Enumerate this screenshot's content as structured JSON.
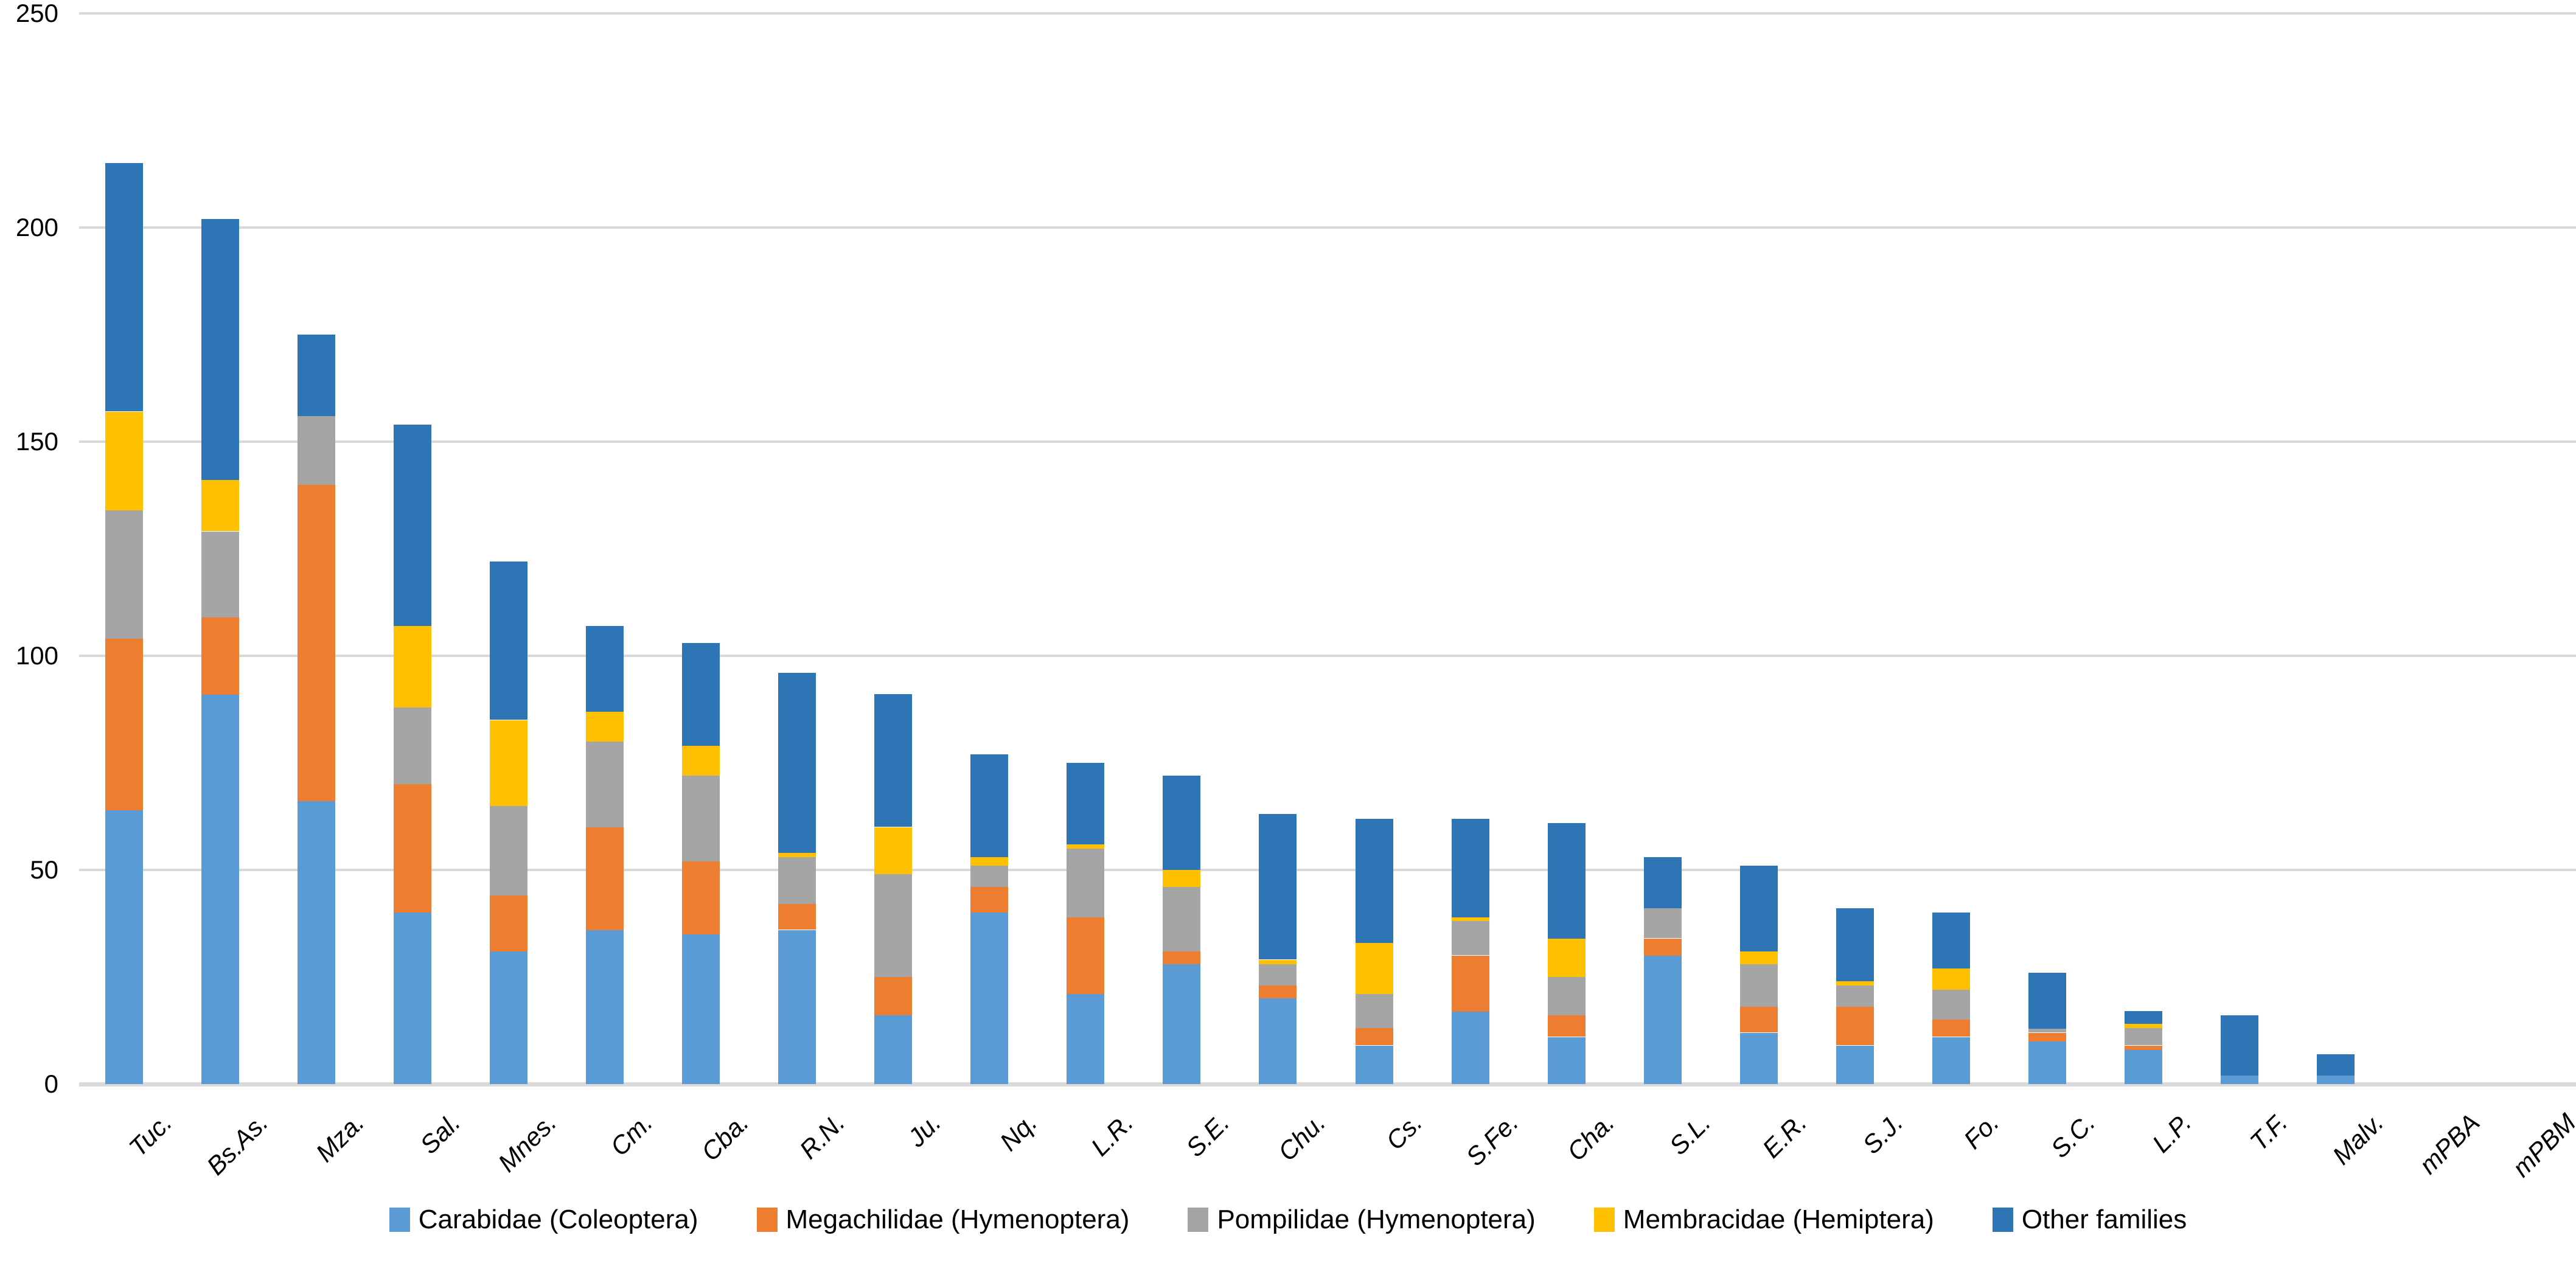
{
  "chart_data": {
    "type": "bar",
    "subtype": "stacked-vertical",
    "title": "",
    "xlabel": "",
    "ylabel": "",
    "grid": true,
    "legend_position": "bottom",
    "y_axis": {
      "min": 0,
      "max": 250,
      "step": 50,
      "tick_labels": [
        "0",
        "50",
        "100",
        "150",
        "200",
        "250"
      ]
    },
    "categories": [
      "Tuc.",
      "Bs.As.",
      "Mza.",
      "Sal.",
      "Mnes.",
      "Cm.",
      "Cba.",
      "R.N.",
      "Ju.",
      "Nq.",
      "L.R.",
      "S.E.",
      "Chu.",
      "Cs.",
      "S.Fe.",
      "Cha.",
      "S.L.",
      "E.R.",
      "S.J.",
      "Fo.",
      "S.C.",
      "L.P.",
      "T.F.",
      "Malv.",
      "mPBA",
      "mPBM"
    ],
    "series": [
      {
        "name": "Carabidae (Coleoptera)",
        "color": "#5B9BD5",
        "values": [
          64,
          91,
          66,
          40,
          31,
          36,
          35,
          36,
          16,
          40,
          21,
          28,
          20,
          9,
          17,
          11,
          30,
          12,
          9,
          11,
          10,
          8,
          2,
          2,
          0,
          0
        ]
      },
      {
        "name": "Megachilidae (Hymenoptera)",
        "color": "#ED7D31",
        "values": [
          40,
          18,
          74,
          30,
          13,
          24,
          17,
          6,
          9,
          6,
          18,
          3,
          3,
          4,
          13,
          5,
          4,
          6,
          9,
          4,
          2,
          1,
          0,
          0,
          0,
          0
        ]
      },
      {
        "name": "Pompilidae (Hymenoptera)",
        "color": "#A5A5A5",
        "values": [
          30,
          20,
          16,
          18,
          21,
          20,
          20,
          11,
          24,
          5,
          16,
          15,
          5,
          8,
          8,
          9,
          7,
          10,
          5,
          7,
          1,
          4,
          0,
          0,
          0,
          0
        ]
      },
      {
        "name": "Membracidae (Hemiptera)",
        "color": "#FFC000",
        "values": [
          23,
          12,
          0,
          19,
          20,
          7,
          7,
          1,
          11,
          2,
          1,
          4,
          1,
          12,
          1,
          9,
          0,
          3,
          1,
          5,
          0,
          1,
          0,
          0,
          0,
          0
        ]
      },
      {
        "name": "Other families",
        "color": "#2E75B6",
        "values": [
          58,
          61,
          19,
          47,
          37,
          20,
          24,
          42,
          31,
          24,
          19,
          22,
          34,
          29,
          23,
          27,
          12,
          20,
          17,
          13,
          13,
          3,
          14,
          5,
          0,
          0
        ]
      }
    ],
    "totals": [
      215,
      202,
      175,
      154,
      122,
      107,
      103,
      96,
      91,
      77,
      75,
      72,
      63,
      62,
      62,
      61,
      53,
      51,
      41,
      40,
      26,
      17,
      16,
      7,
      0,
      0
    ],
    "colors": {
      "gridline": "#D9D9D9",
      "axis_line": "#D9D9D9",
      "text": "#000000",
      "background": "#FFFFFF"
    }
  }
}
